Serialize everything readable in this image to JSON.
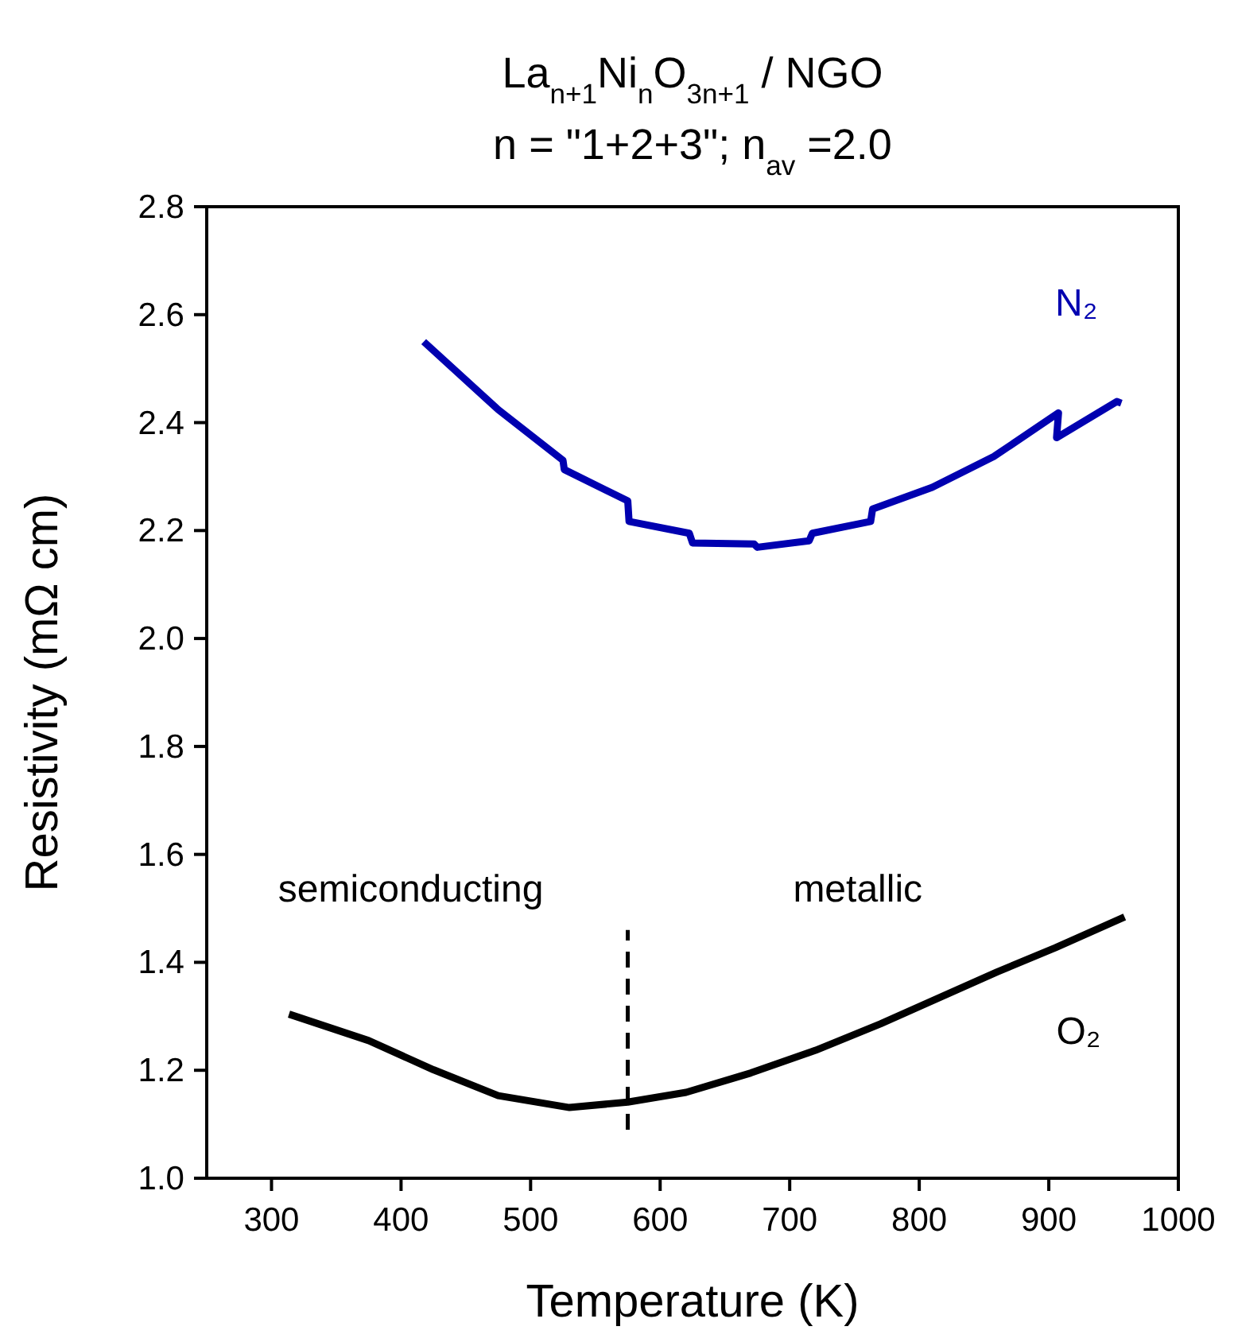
{
  "chart_data": {
    "type": "line",
    "title": "La$_{n+1}$Ni$_{n}$O$_{3n+1}$ / NGO",
    "subtitle": "n = \"1+2+3\"; n$_{av}$ =2.0",
    "xlabel": "Temperature (K)",
    "ylabel": "Resistivity (mΩ cm)",
    "xlim": [
      250,
      1000
    ],
    "xticks": [
      300,
      400,
      500,
      600,
      700,
      800,
      900,
      1000
    ],
    "ylim": [
      1.0,
      2.8
    ],
    "yticks": [
      {
        "value": 1.0,
        "label": "1.0"
      },
      {
        "value": 1.2,
        "label": "1.2"
      },
      {
        "value": 1.4,
        "label": "1.4"
      },
      {
        "value": 1.6,
        "label": "1.6"
      },
      {
        "value": 1.8,
        "label": "1.8"
      },
      {
        "value": 2.0,
        "label": "2.0"
      },
      {
        "value": 2.2,
        "label": "2.2"
      },
      {
        "value": 2.4,
        "label": "2.4"
      },
      {
        "value": 2.6,
        "label": "2.6"
      },
      {
        "value": 2.8,
        "label": "2.8"
      }
    ],
    "grid": false,
    "marker": "none",
    "annotations": [
      "semiconducting",
      "metallic"
    ],
    "series": [
      {
        "name": "N₂",
        "color": "#0000b0",
        "x": [
          417.5,
          475,
          525,
          526,
          575,
          576,
          622.5,
          625,
          672.5,
          675,
          715,
          717.5,
          762.5,
          764,
          810,
          857.5,
          907.5,
          906,
          952.5,
          956
        ],
        "values": [
          2.55,
          2.424,
          2.33,
          2.313,
          2.255,
          2.217,
          2.195,
          2.177,
          2.175,
          2.169,
          2.181,
          2.195,
          2.217,
          2.24,
          2.28,
          2.337,
          2.418,
          2.372,
          2.439,
          2.436
        ]
      },
      {
        "name": "O₂",
        "color": "#000000",
        "x": [
          313.5,
          375,
          425,
          475,
          530,
          575,
          620,
          670,
          720,
          770,
          860,
          905,
          958.5
        ],
        "values": [
          1.304,
          1.255,
          1.201,
          1.153,
          1.131,
          1.141,
          1.159,
          1.195,
          1.237,
          1.286,
          1.382,
          1.427,
          1.484
        ]
      },
      {
        "color": "#000000",
        "line_style": "dashed",
        "x": [
          575,
          575
        ],
        "values": [
          1.09,
          1.46
        ]
      }
    ]
  }
}
